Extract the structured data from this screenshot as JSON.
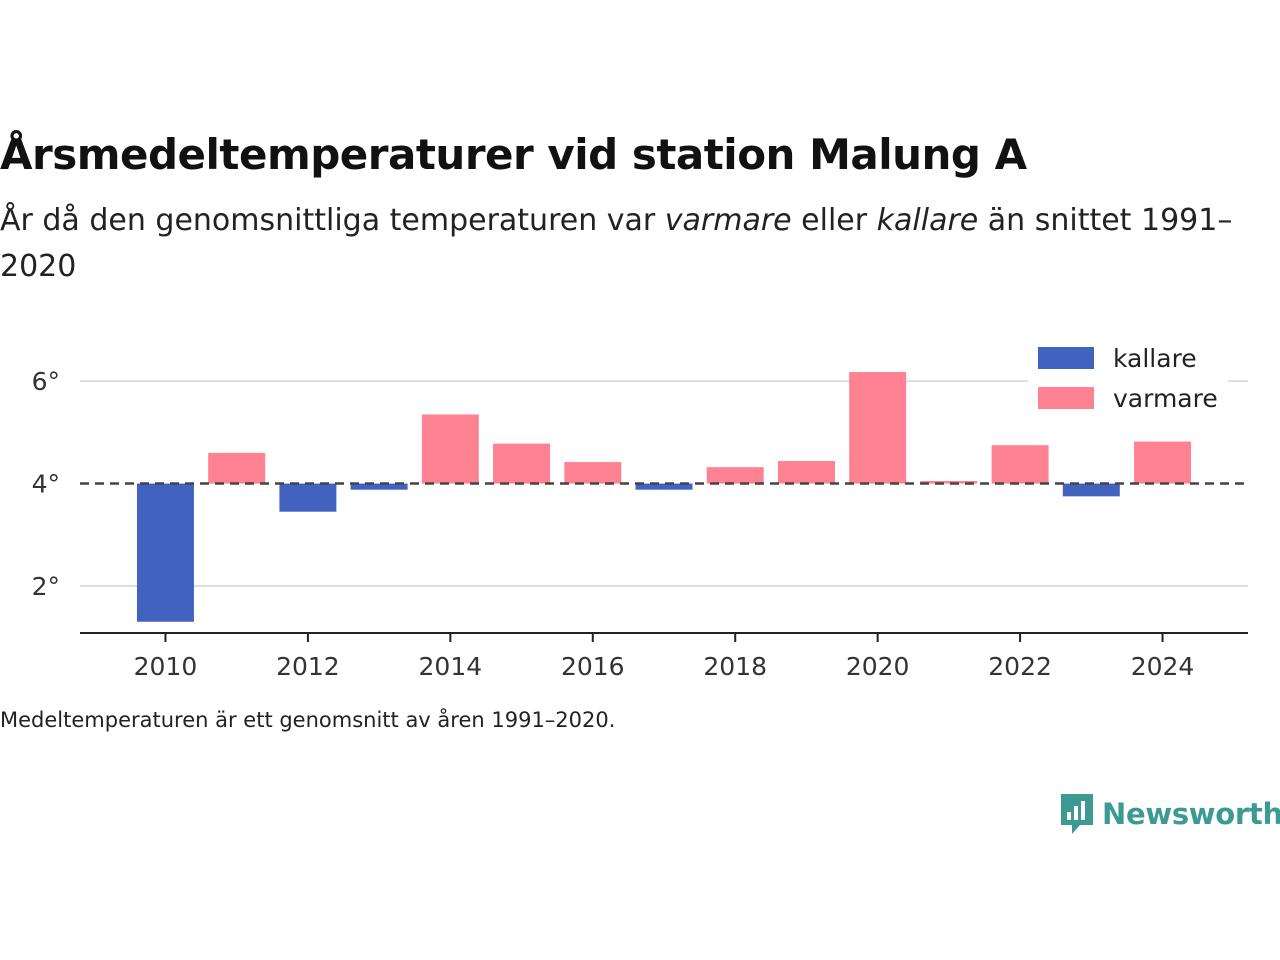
{
  "title": "Årsmedeltemperaturer vid station Malung A",
  "subtitle": {
    "part1": "År då den genomsnittliga temperaturen var ",
    "warm_word": "varmare",
    "part2": " eller ",
    "cold_word": "kallare",
    "part3": " än snittet 1991–2020"
  },
  "caption": "Medeltemperaturen är ett genomsnitt av åren 1991–2020.",
  "logo": {
    "text": "Newsworthy",
    "icon": "newsworthy-logo-icon",
    "color": "#3d9a92"
  },
  "chart_data": {
    "type": "bar",
    "x": [
      2010,
      2011,
      2012,
      2013,
      2014,
      2015,
      2016,
      2017,
      2018,
      2019,
      2020,
      2021,
      2022,
      2023,
      2024
    ],
    "values": [
      1.3,
      4.6,
      3.45,
      3.88,
      5.35,
      4.78,
      4.42,
      3.88,
      4.32,
      4.44,
      6.18,
      4.05,
      4.75,
      3.75,
      4.82
    ],
    "baseline": 4.0,
    "ylim": [
      1.1,
      7.0
    ],
    "xlim": [
      2008.8,
      2025.2
    ],
    "yticks": [
      2,
      4,
      6
    ],
    "ytick_labels": [
      "2°",
      "4°",
      "6°"
    ],
    "xticks": [
      2010,
      2012,
      2014,
      2016,
      2018,
      2020,
      2022,
      2024
    ],
    "xtick_labels": [
      "2010",
      "2012",
      "2014",
      "2016",
      "2018",
      "2020",
      "2022",
      "2024"
    ],
    "legend": [
      {
        "label": "kallare",
        "color": "#4262c0"
      },
      {
        "label": "varmare",
        "color": "#fe8291"
      }
    ],
    "legend_placement": "top-right",
    "colors": {
      "cold": "#4262c0",
      "warm": "#fe8291",
      "grid": "#dddddd",
      "baseline": "#444444",
      "axis": "#222222"
    },
    "grid": true
  }
}
